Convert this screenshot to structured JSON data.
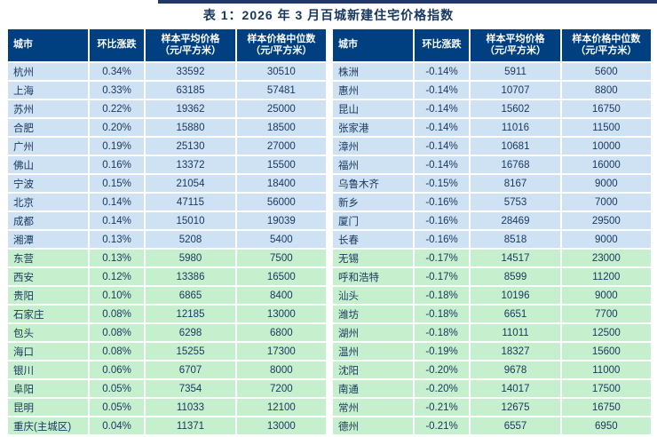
{
  "page": {
    "title": "表 1：2026 年 3 月百城新建住宅价格指数"
  },
  "colors": {
    "header_bg": "#004080",
    "row_blue": "#cfe2f3",
    "row_green": "#c6efce",
    "cell_text": "#17375e",
    "title_color": "#17375e",
    "divider": "#1f3864"
  },
  "headers": {
    "city": "城市",
    "change": "环比涨跌",
    "avg_line1": "样本平均价格",
    "avg_line2": "（元/平方米）",
    "median_line1": "样本价格中位数",
    "median_line2": "（元/平方米）"
  },
  "tables": [
    {
      "side": "left",
      "rows": [
        {
          "city": "杭州",
          "change": "0.34%",
          "avg": "33592",
          "median": "30510",
          "tone": "blue"
        },
        {
          "city": "上海",
          "change": "0.33%",
          "avg": "63185",
          "median": "57481",
          "tone": "blue"
        },
        {
          "city": "苏州",
          "change": "0.22%",
          "avg": "19362",
          "median": "25000",
          "tone": "blue"
        },
        {
          "city": "合肥",
          "change": "0.20%",
          "avg": "15880",
          "median": "18500",
          "tone": "blue"
        },
        {
          "city": "广州",
          "change": "0.19%",
          "avg": "25130",
          "median": "27000",
          "tone": "blue"
        },
        {
          "city": "佛山",
          "change": "0.16%",
          "avg": "13372",
          "median": "15500",
          "tone": "blue"
        },
        {
          "city": "宁波",
          "change": "0.15%",
          "avg": "21054",
          "median": "18400",
          "tone": "blue"
        },
        {
          "city": "北京",
          "change": "0.14%",
          "avg": "47115",
          "median": "56000",
          "tone": "blue"
        },
        {
          "city": "成都",
          "change": "0.14%",
          "avg": "15010",
          "median": "19039",
          "tone": "blue"
        },
        {
          "city": "湘潭",
          "change": "0.13%",
          "avg": "5208",
          "median": "5400",
          "tone": "blue"
        },
        {
          "city": "东营",
          "change": "0.13%",
          "avg": "5980",
          "median": "7500",
          "tone": "green"
        },
        {
          "city": "西安",
          "change": "0.12%",
          "avg": "13386",
          "median": "16500",
          "tone": "green"
        },
        {
          "city": "贵阳",
          "change": "0.10%",
          "avg": "6865",
          "median": "8400",
          "tone": "green"
        },
        {
          "city": "石家庄",
          "change": "0.08%",
          "avg": "12185",
          "median": "13000",
          "tone": "green"
        },
        {
          "city": "包头",
          "change": "0.08%",
          "avg": "6298",
          "median": "6800",
          "tone": "green"
        },
        {
          "city": "海口",
          "change": "0.08%",
          "avg": "15255",
          "median": "17300",
          "tone": "green"
        },
        {
          "city": "银川",
          "change": "0.06%",
          "avg": "6707",
          "median": "8000",
          "tone": "green"
        },
        {
          "city": "阜阳",
          "change": "0.05%",
          "avg": "7354",
          "median": "7200",
          "tone": "green"
        },
        {
          "city": "昆明",
          "change": "0.05%",
          "avg": "11033",
          "median": "12100",
          "tone": "green"
        },
        {
          "city": "重庆(主城区)",
          "change": "0.04%",
          "avg": "11371",
          "median": "13000",
          "tone": "green"
        }
      ]
    },
    {
      "side": "right",
      "rows": [
        {
          "city": "株洲",
          "change": "-0.14%",
          "avg": "5911",
          "median": "5600",
          "tone": "blue"
        },
        {
          "city": "惠州",
          "change": "-0.14%",
          "avg": "10707",
          "median": "8800",
          "tone": "blue"
        },
        {
          "city": "昆山",
          "change": "-0.14%",
          "avg": "15602",
          "median": "16750",
          "tone": "blue"
        },
        {
          "city": "张家港",
          "change": "-0.14%",
          "avg": "11016",
          "median": "11500",
          "tone": "blue"
        },
        {
          "city": "漳州",
          "change": "-0.14%",
          "avg": "10681",
          "median": "10000",
          "tone": "blue"
        },
        {
          "city": "福州",
          "change": "-0.14%",
          "avg": "16768",
          "median": "16000",
          "tone": "blue"
        },
        {
          "city": "乌鲁木齐",
          "change": "-0.15%",
          "avg": "8167",
          "median": "9000",
          "tone": "blue"
        },
        {
          "city": "新乡",
          "change": "-0.16%",
          "avg": "5753",
          "median": "7000",
          "tone": "blue"
        },
        {
          "city": "厦门",
          "change": "-0.16%",
          "avg": "28469",
          "median": "29500",
          "tone": "blue"
        },
        {
          "city": "长春",
          "change": "-0.16%",
          "avg": "8518",
          "median": "9000",
          "tone": "blue"
        },
        {
          "city": "无锡",
          "change": "-0.17%",
          "avg": "14517",
          "median": "23000",
          "tone": "green"
        },
        {
          "city": "呼和浩特",
          "change": "-0.17%",
          "avg": "8599",
          "median": "11200",
          "tone": "green"
        },
        {
          "city": "汕头",
          "change": "-0.18%",
          "avg": "10196",
          "median": "9000",
          "tone": "green"
        },
        {
          "city": "潍坊",
          "change": "-0.18%",
          "avg": "6651",
          "median": "7700",
          "tone": "green"
        },
        {
          "city": "湖州",
          "change": "-0.18%",
          "avg": "11011",
          "median": "12500",
          "tone": "green"
        },
        {
          "city": "温州",
          "change": "-0.19%",
          "avg": "18327",
          "median": "15600",
          "tone": "green"
        },
        {
          "city": "沈阳",
          "change": "-0.20%",
          "avg": "9678",
          "median": "11000",
          "tone": "green"
        },
        {
          "city": "南通",
          "change": "-0.20%",
          "avg": "14017",
          "median": "17500",
          "tone": "green"
        },
        {
          "city": "常州",
          "change": "-0.21%",
          "avg": "12675",
          "median": "16750",
          "tone": "green"
        },
        {
          "city": "德州",
          "change": "-0.21%",
          "avg": "6557",
          "median": "6950",
          "tone": "green"
        }
      ]
    }
  ]
}
